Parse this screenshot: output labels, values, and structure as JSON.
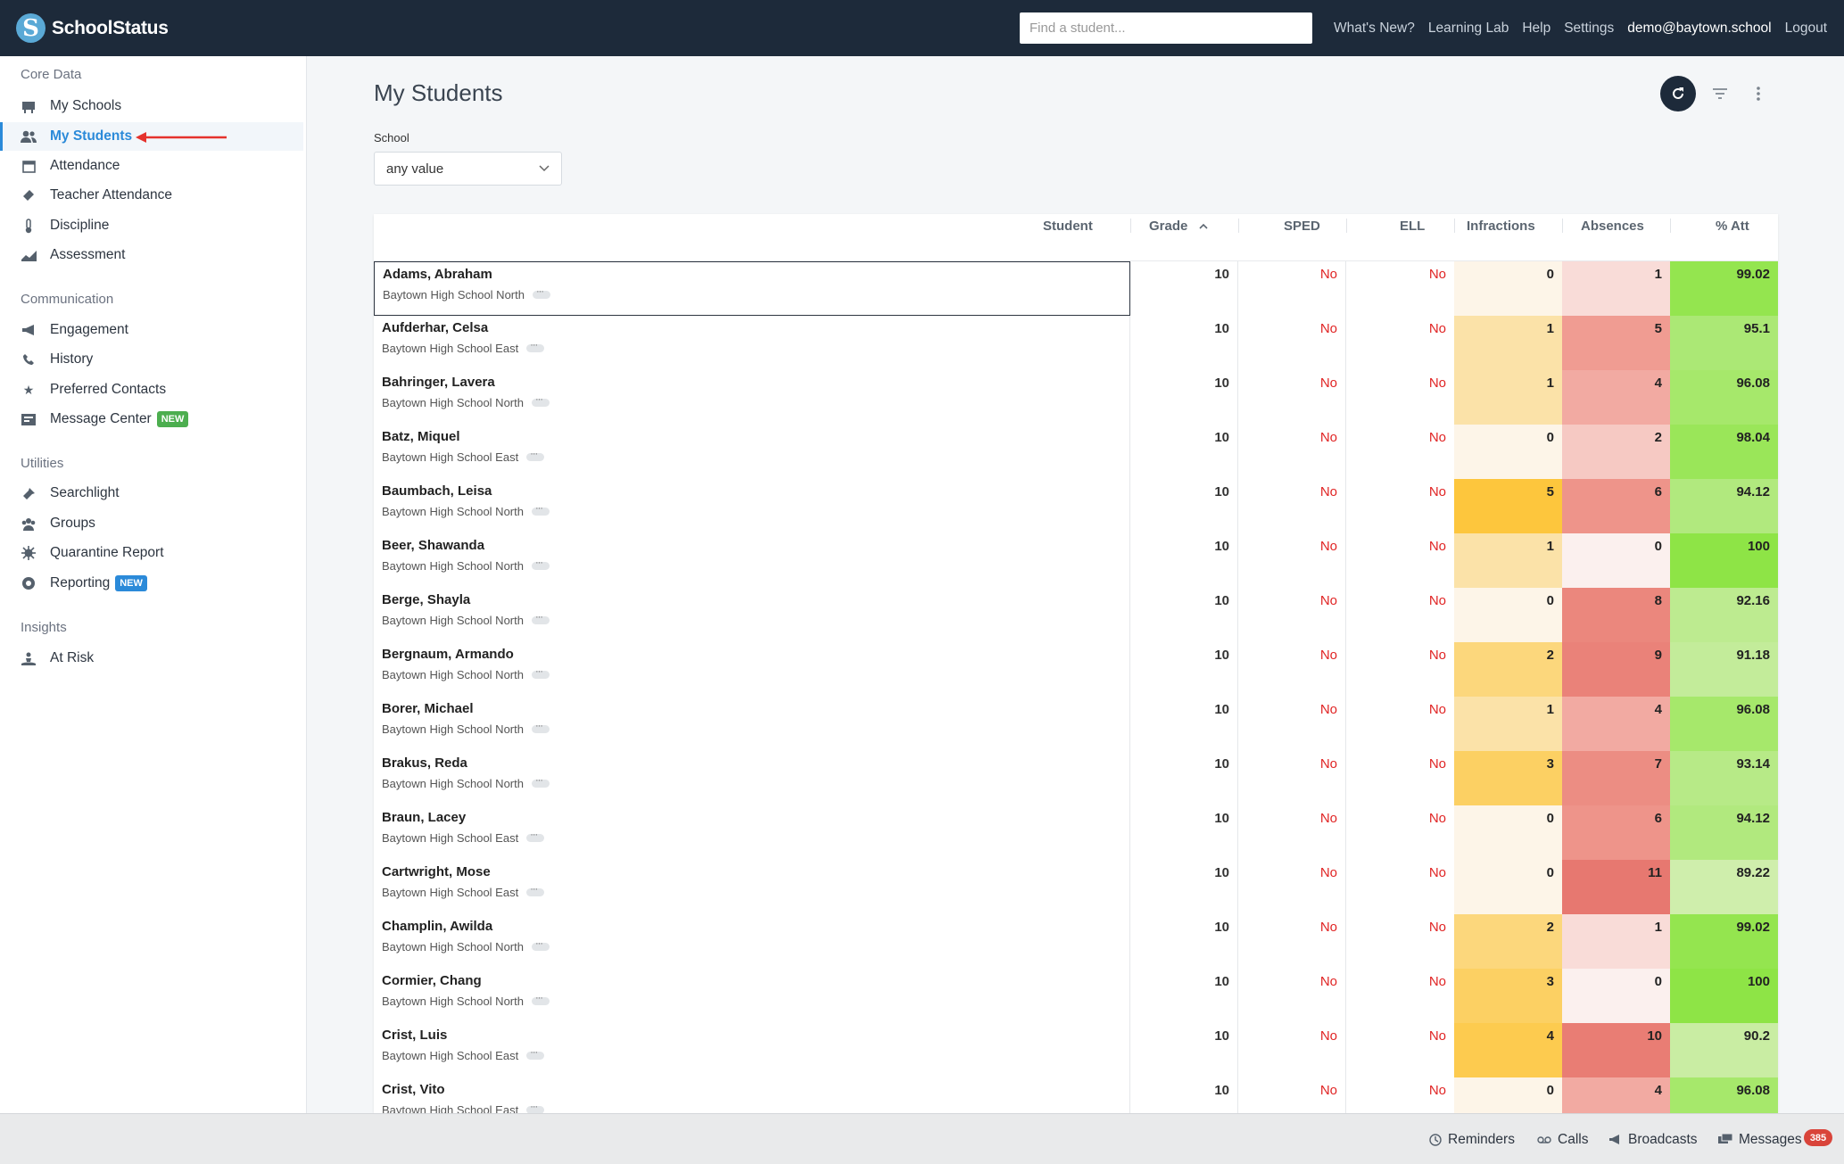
{
  "app": {
    "name": "SchoolStatus",
    "logo_letter": "S"
  },
  "topbar": {
    "search_placeholder": "Find a student...",
    "links": [
      "What's New?",
      "Learning Lab",
      "Help",
      "Settings",
      "demo@baytown.school",
      "Logout"
    ]
  },
  "sidebar": {
    "sections": [
      {
        "title": "Core Data",
        "items": [
          {
            "label": "My Schools",
            "icon": "school-icon"
          },
          {
            "label": "My Students",
            "icon": "students-icon",
            "active": true
          },
          {
            "label": "Attendance",
            "icon": "calendar-icon"
          },
          {
            "label": "Teacher Attendance",
            "icon": "ticket-icon"
          },
          {
            "label": "Discipline",
            "icon": "thermometer-icon"
          },
          {
            "label": "Assessment",
            "icon": "chart-icon"
          }
        ]
      },
      {
        "title": "Communication",
        "items": [
          {
            "label": "Engagement",
            "icon": "megaphone-icon"
          },
          {
            "label": "History",
            "icon": "phone-icon"
          },
          {
            "label": "Preferred Contacts",
            "icon": "star-icon"
          },
          {
            "label": "Message Center",
            "icon": "inbox-icon",
            "badge": "NEW",
            "badge_color": "#4cae4f"
          }
        ]
      },
      {
        "title": "Utilities",
        "items": [
          {
            "label": "Searchlight",
            "icon": "flashlight-icon"
          },
          {
            "label": "Groups",
            "icon": "groups-icon"
          },
          {
            "label": "Quarantine Report",
            "icon": "virus-icon"
          },
          {
            "label": "Reporting",
            "icon": "report-icon",
            "badge": "NEW",
            "badge_color": "#2b8ad9"
          }
        ]
      },
      {
        "title": "Insights",
        "items": [
          {
            "label": "At Risk",
            "icon": "at-risk-icon"
          }
        ]
      }
    ]
  },
  "main": {
    "title": "My Students",
    "filter_label": "School",
    "filter_value": "any value"
  },
  "table": {
    "columns": [
      "Student",
      "Grade",
      "SPED",
      "ELL",
      "Infractions",
      "Absences",
      "% Att"
    ],
    "sorted_column": "Grade",
    "rows": [
      {
        "name": "Adams, Abraham",
        "school": "Baytown High School North",
        "grade": "10",
        "sped": "No",
        "ell": "No",
        "infractions": "0",
        "absences": "1",
        "att": "99.02"
      },
      {
        "name": "Aufderhar, Celsa",
        "school": "Baytown High School East",
        "grade": "10",
        "sped": "No",
        "ell": "No",
        "infractions": "1",
        "absences": "5",
        "att": "95.1"
      },
      {
        "name": "Bahringer, Lavera",
        "school": "Baytown High School North",
        "grade": "10",
        "sped": "No",
        "ell": "No",
        "infractions": "1",
        "absences": "4",
        "att": "96.08"
      },
      {
        "name": "Batz, Miquel",
        "school": "Baytown High School East",
        "grade": "10",
        "sped": "No",
        "ell": "No",
        "infractions": "0",
        "absences": "2",
        "att": "98.04"
      },
      {
        "name": "Baumbach, Leisa",
        "school": "Baytown High School North",
        "grade": "10",
        "sped": "No",
        "ell": "No",
        "infractions": "5",
        "absences": "6",
        "att": "94.12"
      },
      {
        "name": "Beer, Shawanda",
        "school": "Baytown High School North",
        "grade": "10",
        "sped": "No",
        "ell": "No",
        "infractions": "1",
        "absences": "0",
        "att": "100"
      },
      {
        "name": "Berge, Shayla",
        "school": "Baytown High School North",
        "grade": "10",
        "sped": "No",
        "ell": "No",
        "infractions": "0",
        "absences": "8",
        "att": "92.16"
      },
      {
        "name": "Bergnaum, Armando",
        "school": "Baytown High School North",
        "grade": "10",
        "sped": "No",
        "ell": "No",
        "infractions": "2",
        "absences": "9",
        "att": "91.18"
      },
      {
        "name": "Borer, Michael",
        "school": "Baytown High School North",
        "grade": "10",
        "sped": "No",
        "ell": "No",
        "infractions": "1",
        "absences": "4",
        "att": "96.08"
      },
      {
        "name": "Brakus, Reda",
        "school": "Baytown High School North",
        "grade": "10",
        "sped": "No",
        "ell": "No",
        "infractions": "3",
        "absences": "7",
        "att": "93.14"
      },
      {
        "name": "Braun, Lacey",
        "school": "Baytown High School East",
        "grade": "10",
        "sped": "No",
        "ell": "No",
        "infractions": "0",
        "absences": "6",
        "att": "94.12"
      },
      {
        "name": "Cartwright, Mose",
        "school": "Baytown High School East",
        "grade": "10",
        "sped": "No",
        "ell": "No",
        "infractions": "0",
        "absences": "11",
        "att": "89.22"
      },
      {
        "name": "Champlin, Awilda",
        "school": "Baytown High School North",
        "grade": "10",
        "sped": "No",
        "ell": "No",
        "infractions": "2",
        "absences": "1",
        "att": "99.02"
      },
      {
        "name": "Cormier, Chang",
        "school": "Baytown High School North",
        "grade": "10",
        "sped": "No",
        "ell": "No",
        "infractions": "3",
        "absences": "0",
        "att": "100"
      },
      {
        "name": "Crist, Luis",
        "school": "Baytown High School East",
        "grade": "10",
        "sped": "No",
        "ell": "No",
        "infractions": "4",
        "absences": "10",
        "att": "90.2"
      },
      {
        "name": "Crist, Vito",
        "school": "Baytown High School East",
        "grade": "10",
        "sped": "No",
        "ell": "No",
        "infractions": "0",
        "absences": "4",
        "att": "96.08"
      }
    ]
  },
  "footer": {
    "items": [
      {
        "label": "Reminders",
        "icon": "clock-icon"
      },
      {
        "label": "Calls",
        "icon": "voicemail-icon"
      },
      {
        "label": "Broadcasts",
        "icon": "megaphone-icon"
      },
      {
        "label": "Messages",
        "icon": "messages-icon"
      }
    ],
    "messages_count": "385"
  }
}
